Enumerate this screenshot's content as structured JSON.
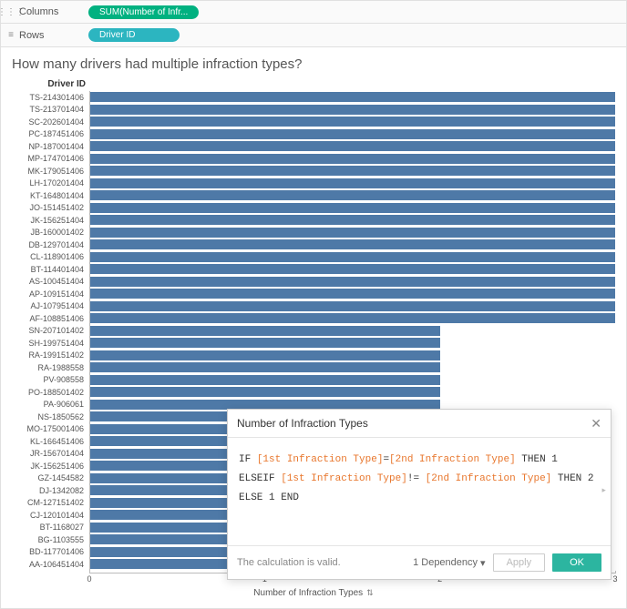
{
  "shelves": {
    "columns_label": "Columns",
    "rows_label": "Rows",
    "columns_pill": "SUM(Number of Infr...",
    "rows_pill": "Driver ID"
  },
  "viz": {
    "title": "How many drivers had multiple infraction types?",
    "y_axis_title": "Driver ID",
    "x_axis_title": "Number of Infraction Types",
    "x_min": 0,
    "x_max": 3,
    "x_ticks": [
      0,
      1,
      2,
      3
    ],
    "bar_color": "#4e79a7",
    "background": "#ffffff",
    "grid_color": "#eeeeee",
    "axis_color": "#bbbbbb",
    "bars": [
      {
        "label": "TS-214301406",
        "value": 3
      },
      {
        "label": "TS-213701404",
        "value": 3
      },
      {
        "label": "SC-202601404",
        "value": 3
      },
      {
        "label": "PC-187451406",
        "value": 3
      },
      {
        "label": "NP-187001404",
        "value": 3
      },
      {
        "label": "MP-174701406",
        "value": 3
      },
      {
        "label": "MK-179051406",
        "value": 3
      },
      {
        "label": "LH-170201404",
        "value": 3
      },
      {
        "label": "KT-164801404",
        "value": 3
      },
      {
        "label": "JO-151451402",
        "value": 3
      },
      {
        "label": "JK-156251404",
        "value": 3
      },
      {
        "label": "JB-160001402",
        "value": 3
      },
      {
        "label": "DB-129701404",
        "value": 3
      },
      {
        "label": "CL-118901406",
        "value": 3
      },
      {
        "label": "BT-114401404",
        "value": 3
      },
      {
        "label": "AS-100451404",
        "value": 3
      },
      {
        "label": "AP-109151404",
        "value": 3
      },
      {
        "label": "AJ-107951404",
        "value": 3
      },
      {
        "label": "AF-108851406",
        "value": 3
      },
      {
        "label": "SN-207101402",
        "value": 2
      },
      {
        "label": "SH-199751404",
        "value": 2
      },
      {
        "label": "RA-199151402",
        "value": 2
      },
      {
        "label": "RA-1988558",
        "value": 2
      },
      {
        "label": "PV-908558",
        "value": 2
      },
      {
        "label": "PO-188501402",
        "value": 2
      },
      {
        "label": "PA-906061",
        "value": 2
      },
      {
        "label": "NS-1850562",
        "value": 2
      },
      {
        "label": "MO-175001406",
        "value": 2
      },
      {
        "label": "KL-166451406",
        "value": 2
      },
      {
        "label": "JR-156701404",
        "value": 2
      },
      {
        "label": "JK-156251406",
        "value": 2
      },
      {
        "label": "GZ-1454582",
        "value": 2
      },
      {
        "label": "DJ-1342082",
        "value": 2
      },
      {
        "label": "CM-127151402",
        "value": 2
      },
      {
        "label": "CJ-120101404",
        "value": 2
      },
      {
        "label": "BT-1168027",
        "value": 2
      },
      {
        "label": "BG-1103555",
        "value": 2
      },
      {
        "label": "BD-117701406",
        "value": 2
      },
      {
        "label": "AA-106451404",
        "value": 2
      }
    ]
  },
  "calc_dialog": {
    "title": "Number of Infraction Types",
    "line1_if": "IF ",
    "line1_f1": "[1st Infraction Type]",
    "line1_eq": "=",
    "line1_f2": "[2nd Infraction Type]",
    "line1_then": " THEN 1",
    "line2_elseif": "ELSEIF ",
    "line2_f1": "[1st Infraction Type]",
    "line2_neq": "!= ",
    "line2_f2": "[2nd Infraction Type]",
    "line2_then": " THEN 2",
    "line3": "ELSE 1 END",
    "status": "The calculation is valid.",
    "dependency": "1 Dependency",
    "apply": "Apply",
    "ok": "OK"
  }
}
